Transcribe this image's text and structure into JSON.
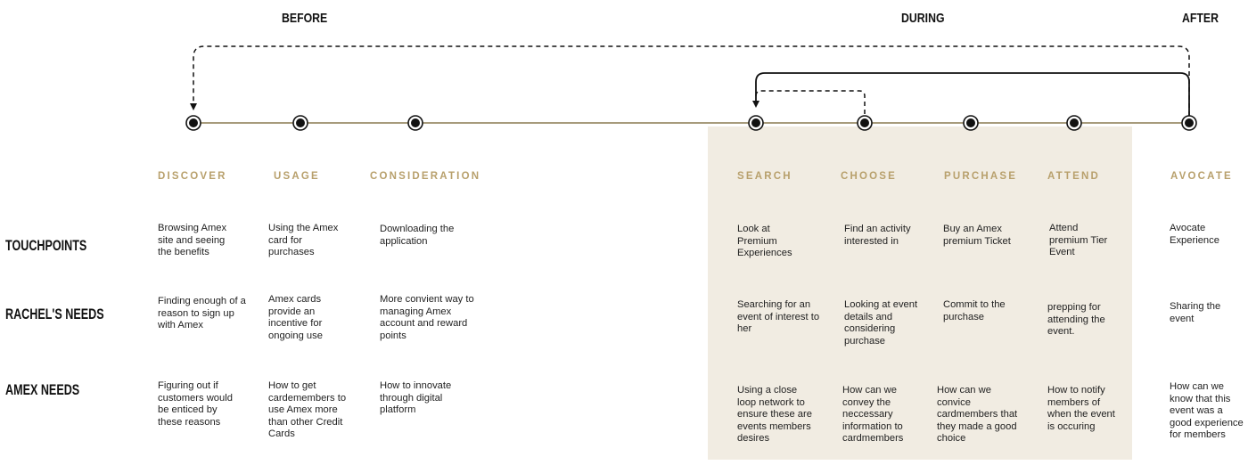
{
  "phases": {
    "before": "BEFORE",
    "during": "DURING",
    "after": "AFTER"
  },
  "stages": {
    "discover": "DISCOVER",
    "usage": "USAGE",
    "consideration": "CONSIDERATION",
    "search": "SEARCH",
    "choose": "CHOOSE",
    "purchase": "PURCHASE",
    "attend": "ATTEND",
    "avocate": "AVOCATE"
  },
  "rows": {
    "touchpoints": "TOUCHPOINTS",
    "rachels_needs": "RACHEL'S NEEDS",
    "amex_needs": "AMEX NEEDS"
  },
  "colors": {
    "timeline": "#8a7a50",
    "stage_label": "#b8a06c",
    "during_highlight": "#f1ece2",
    "node": "#111111"
  },
  "cells": {
    "touchpoints": {
      "discover": "Browsing Amex site and seeing the benefits",
      "usage": "Using the Amex card for purchases",
      "consideration": "Downloading the application",
      "search": "Look at Premium Experiences",
      "choose": "Find an activity interested in",
      "purchase": "Buy an Amex premium Ticket",
      "attend": "Attend premium Tier Event",
      "avocate": "Avocate Experience"
    },
    "rachels_needs": {
      "discover": "Finding enough of a reason to sign up with Amex",
      "usage": "Amex cards provide an incentive for ongoing use",
      "consideration": "More convient way to managing Amex account and reward points",
      "search": "Searching for an event of interest to her",
      "choose": "Looking at event details and considering purchase",
      "purchase": "Commit to the purchase",
      "attend": "prepping for attending the event.",
      "avocate": "Sharing the event"
    },
    "amex_needs": {
      "discover": "Figuring out if customers would be enticed by these reasons",
      "usage": "How to get cardemembers to use Amex more than other Credit Cards",
      "consideration": "How to innovate through digital platform",
      "search": "Using a close loop network to ensure these are events members desires",
      "choose": "How can we convey the neccessary information to cardmembers",
      "purchase": "How can we convice cardmembers that they made a good choice",
      "attend": "How to notify members of when the event is occuring",
      "avocate": "How can we know that this event was a good experience for members"
    }
  }
}
